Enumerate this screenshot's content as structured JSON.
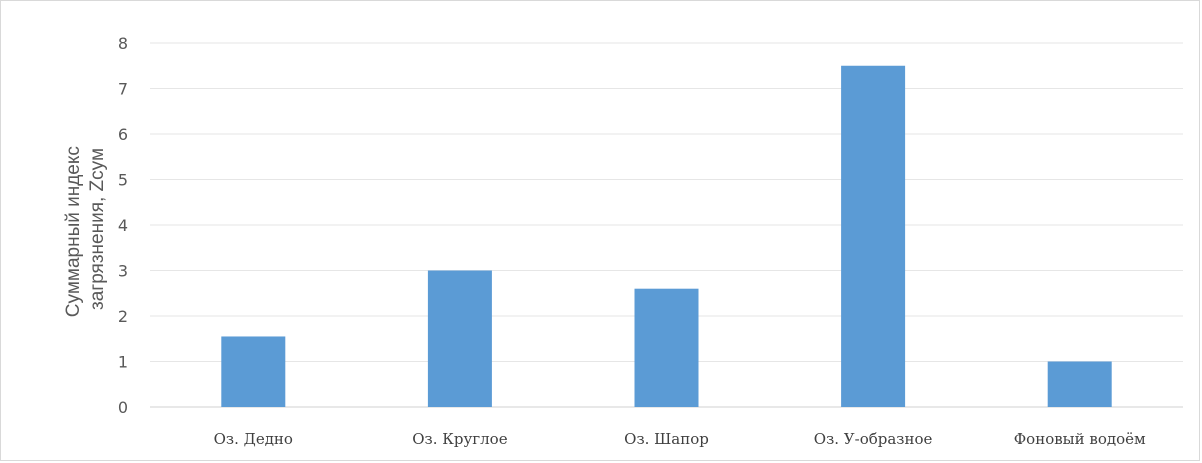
{
  "chart_data": {
    "type": "bar",
    "categories": [
      "Оз. Дедно",
      "Оз. Круглое",
      "Оз. Шапор",
      "Оз. У-образное",
      "Фоновый водоём"
    ],
    "values": [
      1.55,
      3.0,
      2.6,
      7.5,
      1.0
    ],
    "ylabel": [
      "Суммарный индекс",
      "загрязнения, Zсум"
    ],
    "yticks": [
      "0",
      "1",
      "2",
      "3",
      "4",
      "5",
      "6",
      "7",
      "8"
    ],
    "ylim": [
      0,
      8
    ],
    "grid": true,
    "legend": "none",
    "bar_color": "#5b9bd5"
  }
}
